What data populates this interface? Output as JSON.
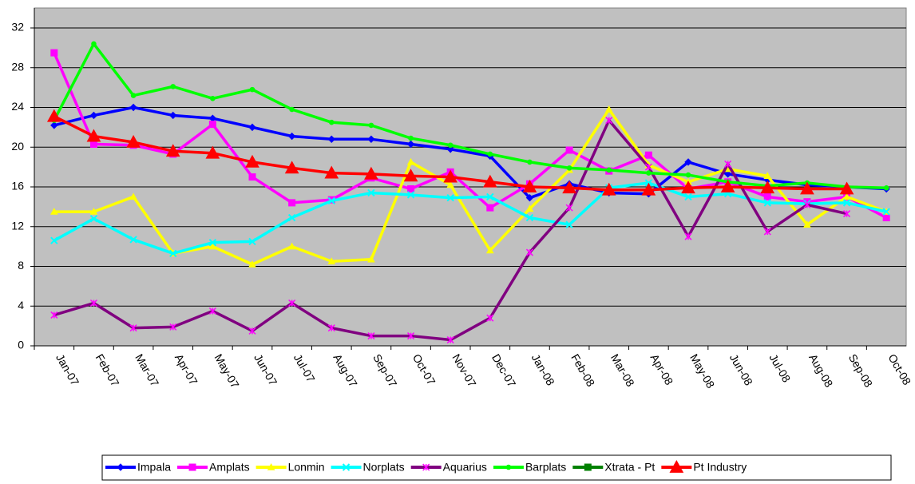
{
  "chart_data": {
    "type": "line",
    "categories": [
      "Jan-07",
      "Feb-07",
      "Mar-07",
      "Apr-07",
      "May-07",
      "Jun-07",
      "Jul-07",
      "Aug-07",
      "Sep-07",
      "Oct-07",
      "Nov-07",
      "Dec-07",
      "Jan-08",
      "Feb-08",
      "Mar-08",
      "Apr-08",
      "May-08",
      "Jun-08",
      "Jul-08",
      "Aug-08",
      "Sep-08",
      "Oct-08"
    ],
    "ylim": [
      0,
      32
    ],
    "yticks": [
      0,
      4,
      8,
      12,
      16,
      20,
      24,
      28,
      32
    ],
    "grid": true,
    "legend": "bottom",
    "series": [
      {
        "name": "Impala",
        "color": "#0000ff",
        "marker": "diamond",
        "values": [
          22.2,
          23.2,
          24.0,
          23.2,
          22.9,
          22.0,
          21.1,
          20.8,
          20.8,
          20.3,
          19.8,
          19.1,
          14.9,
          16.3,
          15.4,
          15.3,
          18.5,
          17.3,
          16.7,
          16.2,
          16.0,
          15.8
        ]
      },
      {
        "name": "Amplats",
        "color": "#ff00ff",
        "marker": "square",
        "values": [
          29.5,
          20.3,
          20.2,
          19.3,
          22.3,
          17.0,
          14.4,
          14.7,
          16.9,
          15.8,
          17.5,
          13.9,
          16.3,
          19.7,
          17.6,
          19.2,
          15.8,
          16.5,
          15.0,
          14.5,
          15.0,
          12.9
        ]
      },
      {
        "name": "Lonmin",
        "color": "#ffff00",
        "marker": "triangle",
        "values": [
          13.5,
          13.5,
          15.0,
          9.3,
          10.0,
          8.2,
          10.0,
          8.5,
          8.7,
          18.5,
          16.2,
          9.6,
          13.8,
          17.7,
          23.8,
          18.2,
          16.5,
          17.8,
          17.1,
          12.2,
          15.0,
          13.5
        ]
      },
      {
        "name": "Norplats",
        "color": "#00ffff",
        "marker": "x",
        "values": [
          10.6,
          12.8,
          10.7,
          9.3,
          10.4,
          10.5,
          12.9,
          14.6,
          15.4,
          15.2,
          14.9,
          15.0,
          12.9,
          12.2,
          15.9,
          16.4,
          15.0,
          15.3,
          14.4,
          14.3,
          14.4,
          13.5
        ]
      },
      {
        "name": "Aquarius",
        "color": "#800080",
        "marker": "star",
        "values": [
          3.1,
          4.3,
          1.8,
          1.9,
          3.5,
          1.5,
          4.3,
          1.8,
          1.0,
          1.0,
          0.6,
          2.8,
          9.4,
          13.9,
          22.7,
          18.0,
          11.0,
          18.3,
          11.5,
          14.2,
          13.3,
          null
        ]
      },
      {
        "name": "Barplats",
        "color": "#00ff00",
        "marker": "circle",
        "values": [
          22.7,
          30.4,
          25.2,
          26.1,
          24.9,
          25.8,
          23.8,
          22.5,
          22.2,
          20.9,
          20.2,
          19.3,
          18.5,
          17.9,
          17.7,
          17.4,
          17.2,
          16.5,
          16.1,
          16.4,
          16.0,
          15.9
        ]
      },
      {
        "name": "Xtrata - Pt",
        "color": "#008000",
        "marker": "square",
        "values": [
          null,
          null,
          null,
          null,
          null,
          null,
          null,
          null,
          null,
          null,
          null,
          null,
          null,
          null,
          null,
          null,
          null,
          null,
          null,
          null,
          null,
          null
        ]
      },
      {
        "name": "Pt Industry",
        "color": "#ff0000",
        "marker": "bigtriangle",
        "values": [
          23.1,
          21.1,
          20.5,
          19.6,
          19.4,
          18.5,
          17.9,
          17.4,
          17.3,
          17.1,
          17.0,
          16.5,
          16.0,
          15.9,
          15.7,
          15.7,
          15.9,
          16.0,
          15.9,
          15.8,
          15.8,
          null
        ]
      }
    ]
  }
}
